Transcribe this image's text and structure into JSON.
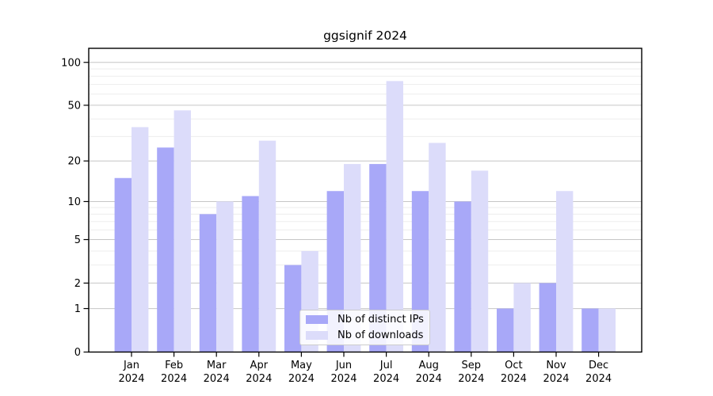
{
  "chart_data": {
    "type": "bar",
    "title": "ggsignif 2024",
    "scale": "log1p",
    "categories": [
      "Jan",
      "Feb",
      "Mar",
      "Apr",
      "May",
      "Jun",
      "Jul",
      "Aug",
      "Sep",
      "Oct",
      "Nov",
      "Dec"
    ],
    "category_year": "2024",
    "series": [
      {
        "name": "Nb of distinct IPs",
        "color": "#a8a8f8",
        "values": [
          15,
          25,
          8,
          11,
          3,
          12,
          19,
          12,
          10,
          1,
          2,
          1
        ]
      },
      {
        "name": "Nb of downloads",
        "color": "#dcdcfa",
        "values": [
          35,
          46,
          10,
          28,
          4,
          19,
          74,
          27,
          17,
          2,
          12,
          1
        ]
      }
    ],
    "xlabel": "",
    "ylabel": "",
    "y_major_ticks": [
      0,
      1,
      2,
      5,
      10,
      20,
      50,
      100
    ],
    "y_minor_ticks": [
      3,
      4,
      6,
      7,
      8,
      9,
      30,
      40,
      60,
      70,
      80,
      90
    ],
    "ylim": [
      0,
      126
    ],
    "grid": "horizontal",
    "legend_position": "lower-center-inside"
  },
  "colors": {
    "bar_dark": "#a8a8f8",
    "bar_light": "#dcdcfa",
    "grid_major": "#c6c6c6",
    "grid_minor": "#ededed",
    "axis": "#000000",
    "legend_border": "#cccccc",
    "background": "#ffffff"
  }
}
